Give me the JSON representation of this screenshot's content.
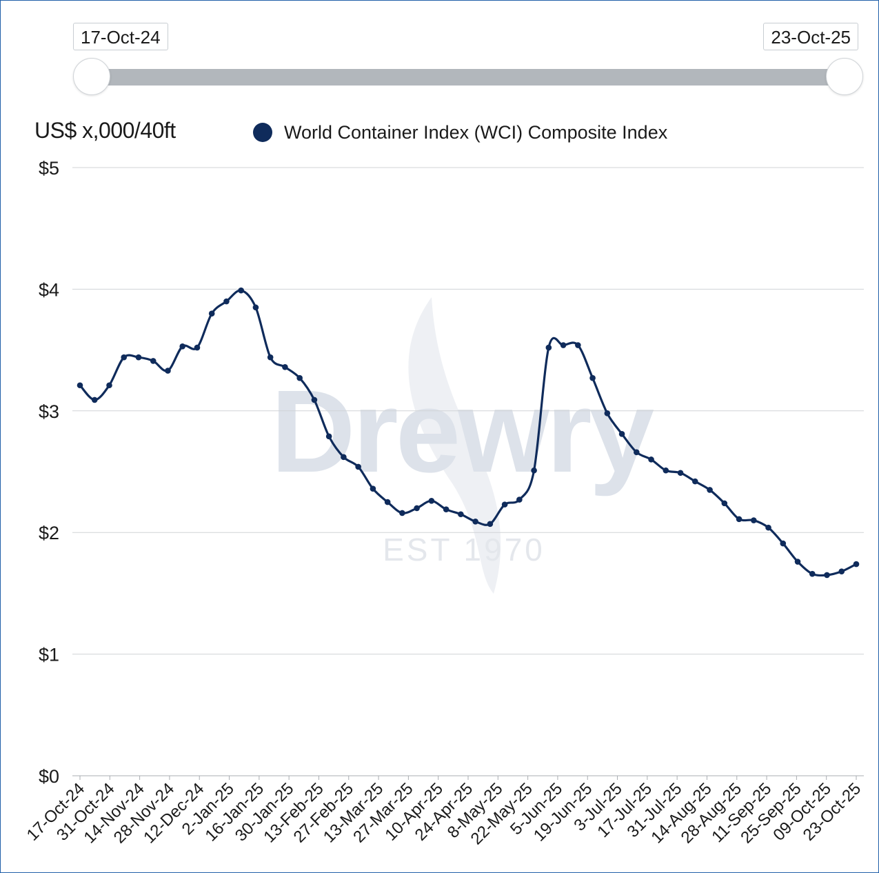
{
  "slider": {
    "start_label": "17-Oct-24",
    "end_label": "23-Oct-25"
  },
  "watermark": {
    "brand": "Drewry",
    "tagline": "EST 1970"
  },
  "colors": {
    "series": "#0f2b5b",
    "grid": "#d0d3d6",
    "track": "#b2b7bc",
    "frame": "#1f5fa8"
  },
  "chart_data": {
    "type": "line",
    "title": "",
    "ylabel": "US$ x,000/40ft",
    "xlabel": "",
    "ylim": [
      0,
      5
    ],
    "yticks": [
      0,
      1,
      2,
      3,
      4,
      5
    ],
    "ytick_labels": [
      "$0",
      "$1",
      "$2",
      "$3",
      "$4",
      "$5"
    ],
    "legend": "top",
    "x_tick_labels": [
      "17-Oct-24",
      "31-Oct-24",
      "14-Nov-24",
      "28-Nov-24",
      "12-Dec-24",
      "2-Jan-25",
      "16-Jan-25",
      "30-Jan-25",
      "13-Feb-25",
      "27-Feb-25",
      "13-Mar-25",
      "27-Mar-25",
      "10-Apr-25",
      "24-Apr-25",
      "8-May-25",
      "22-May-25",
      "5-Jun-25",
      "19-Jun-25",
      "3-Jul-25",
      "17-Jul-25",
      "31-Jul-25",
      "14-Aug-25",
      "28-Aug-25",
      "11-Sep-25",
      "25-Sep-25",
      "09-Oct-25",
      "23-Oct-25"
    ],
    "series": [
      {
        "name": "World Container Index (WCI) Composite Index",
        "values": [
          3.21,
          3.09,
          3.21,
          3.44,
          3.44,
          3.41,
          3.33,
          3.53,
          3.52,
          3.8,
          3.9,
          3.99,
          3.85,
          3.44,
          3.36,
          3.27,
          3.09,
          2.79,
          2.62,
          2.54,
          2.36,
          2.25,
          2.16,
          2.2,
          2.26,
          2.19,
          2.15,
          2.09,
          2.07,
          2.23,
          2.27,
          2.51,
          3.52,
          3.54,
          3.54,
          3.27,
          2.98,
          2.81,
          2.66,
          2.6,
          2.51,
          2.49,
          2.42,
          2.35,
          2.24,
          2.11,
          2.1,
          2.04,
          1.91,
          1.76,
          1.66,
          1.65,
          1.68,
          1.74
        ]
      }
    ]
  }
}
